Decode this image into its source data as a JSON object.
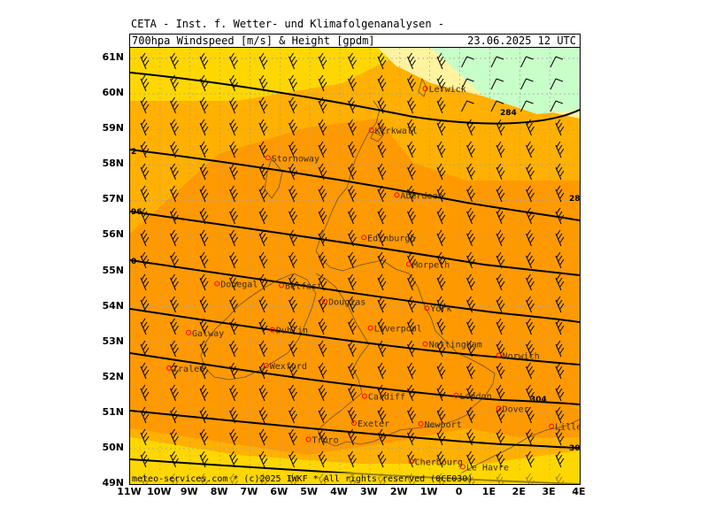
{
  "header": {
    "title": "CETA - Inst. f. Wetter- und Klimafolgenanalysen -",
    "subtitle": "700hpa Windspeed [m/s] & Height [gpdm]",
    "datetime": "23.06.2025 12 UTC"
  },
  "map": {
    "lat_labels": [
      "61N",
      "60N",
      "59N",
      "58N",
      "57N",
      "56N",
      "55N",
      "54N",
      "53N",
      "52N",
      "51N",
      "50N",
      "49N"
    ],
    "lon_labels": [
      "11W",
      "10W",
      "9W",
      "8W",
      "7W",
      "6W",
      "5W",
      "4W",
      "3W",
      "2W",
      "1W",
      "0",
      "1E",
      "2E",
      "3E",
      "4E"
    ],
    "lat_range": [
      49,
      61.3
    ],
    "lon_range": [
      -11,
      4
    ],
    "contour_labels": {
      "right_top": "28",
      "right_bottom": "30",
      "inner_284": "284",
      "inner_304": "304",
      "left_1": "2",
      "left_2": "96",
      "left_3": "0"
    },
    "cities": [
      {
        "name": "Lerwick",
        "lon": -1.15,
        "lat": 60.15
      },
      {
        "name": "Kirkwall",
        "lon": -2.95,
        "lat": 58.98
      },
      {
        "name": "Stornoway",
        "lon": -6.4,
        "lat": 58.2
      },
      {
        "name": "Aberdeen",
        "lon": -2.1,
        "lat": 57.15
      },
      {
        "name": "Edinburgh",
        "lon": -3.2,
        "lat": 55.95
      },
      {
        "name": "Douglas",
        "lon": -4.5,
        "lat": 54.15
      },
      {
        "name": "Morpeth",
        "lon": -1.7,
        "lat": 55.2
      },
      {
        "name": "Donegal",
        "lon": -8.1,
        "lat": 54.65
      },
      {
        "name": "Belfast",
        "lon": -5.95,
        "lat": 54.6
      },
      {
        "name": "York",
        "lon": -1.1,
        "lat": 53.96
      },
      {
        "name": "Galway",
        "lon": -9.05,
        "lat": 53.27
      },
      {
        "name": "Dublin",
        "lon": -6.25,
        "lat": 53.35
      },
      {
        "name": "Liverpool",
        "lon": -2.98,
        "lat": 53.4
      },
      {
        "name": "Nottingham",
        "lon": -1.15,
        "lat": 52.95
      },
      {
        "name": "Tralee",
        "lon": -9.7,
        "lat": 52.27
      },
      {
        "name": "Wexford",
        "lon": -6.46,
        "lat": 52.34
      },
      {
        "name": "Norwich",
        "lon": 1.3,
        "lat": 52.63
      },
      {
        "name": "Cardiff",
        "lon": -3.18,
        "lat": 51.48
      },
      {
        "name": "London",
        "lon": -0.12,
        "lat": 51.5
      },
      {
        "name": "Dover",
        "lon": 1.3,
        "lat": 51.13
      },
      {
        "name": "Exeter",
        "lon": -3.53,
        "lat": 50.72
      },
      {
        "name": "Newport",
        "lon": -1.3,
        "lat": 50.7
      },
      {
        "name": "Truro",
        "lon": -5.05,
        "lat": 50.26
      },
      {
        "name": "Lille",
        "lon": 3.06,
        "lat": 50.63
      },
      {
        "name": "Le Havre",
        "lon": 0.1,
        "lat": 49.49
      },
      {
        "name": "Cherbourg",
        "lon": -1.62,
        "lat": 49.64
      }
    ]
  },
  "footer": "meteo-services.com * (c)2025 IWKF * All rights reserved (0CE030)",
  "colors": {
    "bg_light_yellow": "#fff3a0",
    "yellow": "#ffd700",
    "orange_light": "#ffb000",
    "orange": "#ff9900",
    "green_light": "#c8ffc8",
    "city_marker": "#ff0000",
    "contour": "#000000"
  }
}
